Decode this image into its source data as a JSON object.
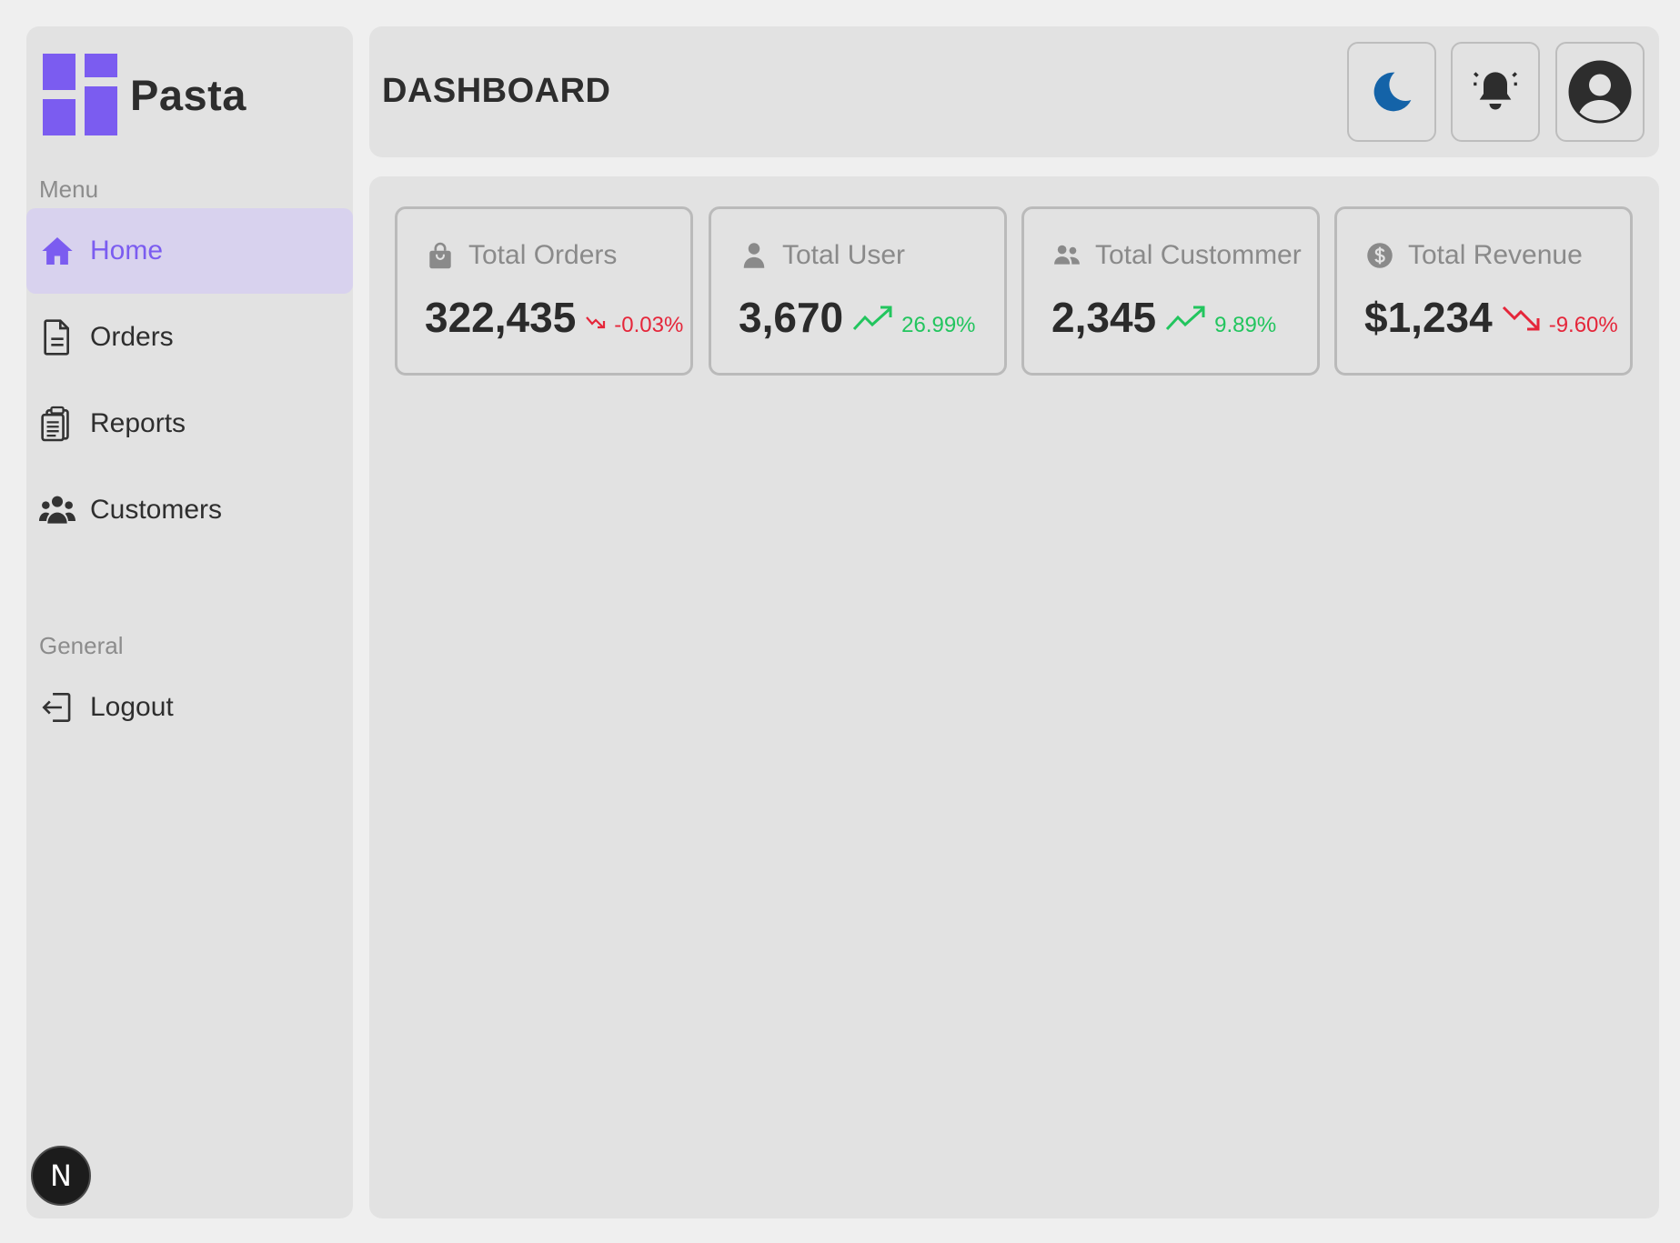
{
  "brand": {
    "name": "Pasta",
    "accent": "#7b5cf0"
  },
  "sidebar": {
    "menu_label": "Menu",
    "items": [
      {
        "label": "Home",
        "icon": "home-icon",
        "active": true
      },
      {
        "label": "Orders",
        "icon": "document-icon"
      },
      {
        "label": "Reports",
        "icon": "clipboard-icon"
      },
      {
        "label": "Customers",
        "icon": "users-icon"
      }
    ],
    "general_label": "General",
    "general_items": [
      {
        "label": "Logout",
        "icon": "logout-icon"
      }
    ]
  },
  "header": {
    "title": "DASHBOARD",
    "buttons": [
      {
        "icon": "moon-icon"
      },
      {
        "icon": "bell-icon"
      },
      {
        "icon": "user-avatar-icon"
      }
    ]
  },
  "cards": [
    {
      "title": "Total Orders",
      "icon": "shopping-bag-icon",
      "value": "322,435",
      "change": "-0.03%",
      "trend": "down"
    },
    {
      "title": "Total User",
      "icon": "user-icon",
      "value": "3,670",
      "change": "26.99%",
      "trend": "up"
    },
    {
      "title": "Total Custommer",
      "icon": "users-icon",
      "value": "2,345",
      "change": "9.89%",
      "trend": "up"
    },
    {
      "title": "Total Revenue",
      "icon": "dollar-icon",
      "value": "$1,234",
      "change": "-9.60%",
      "trend": "down"
    }
  ],
  "badge": {
    "letter": "N"
  },
  "colors": {
    "up": "#22c55e",
    "down": "#e5263a",
    "moon": "#1463a8"
  }
}
